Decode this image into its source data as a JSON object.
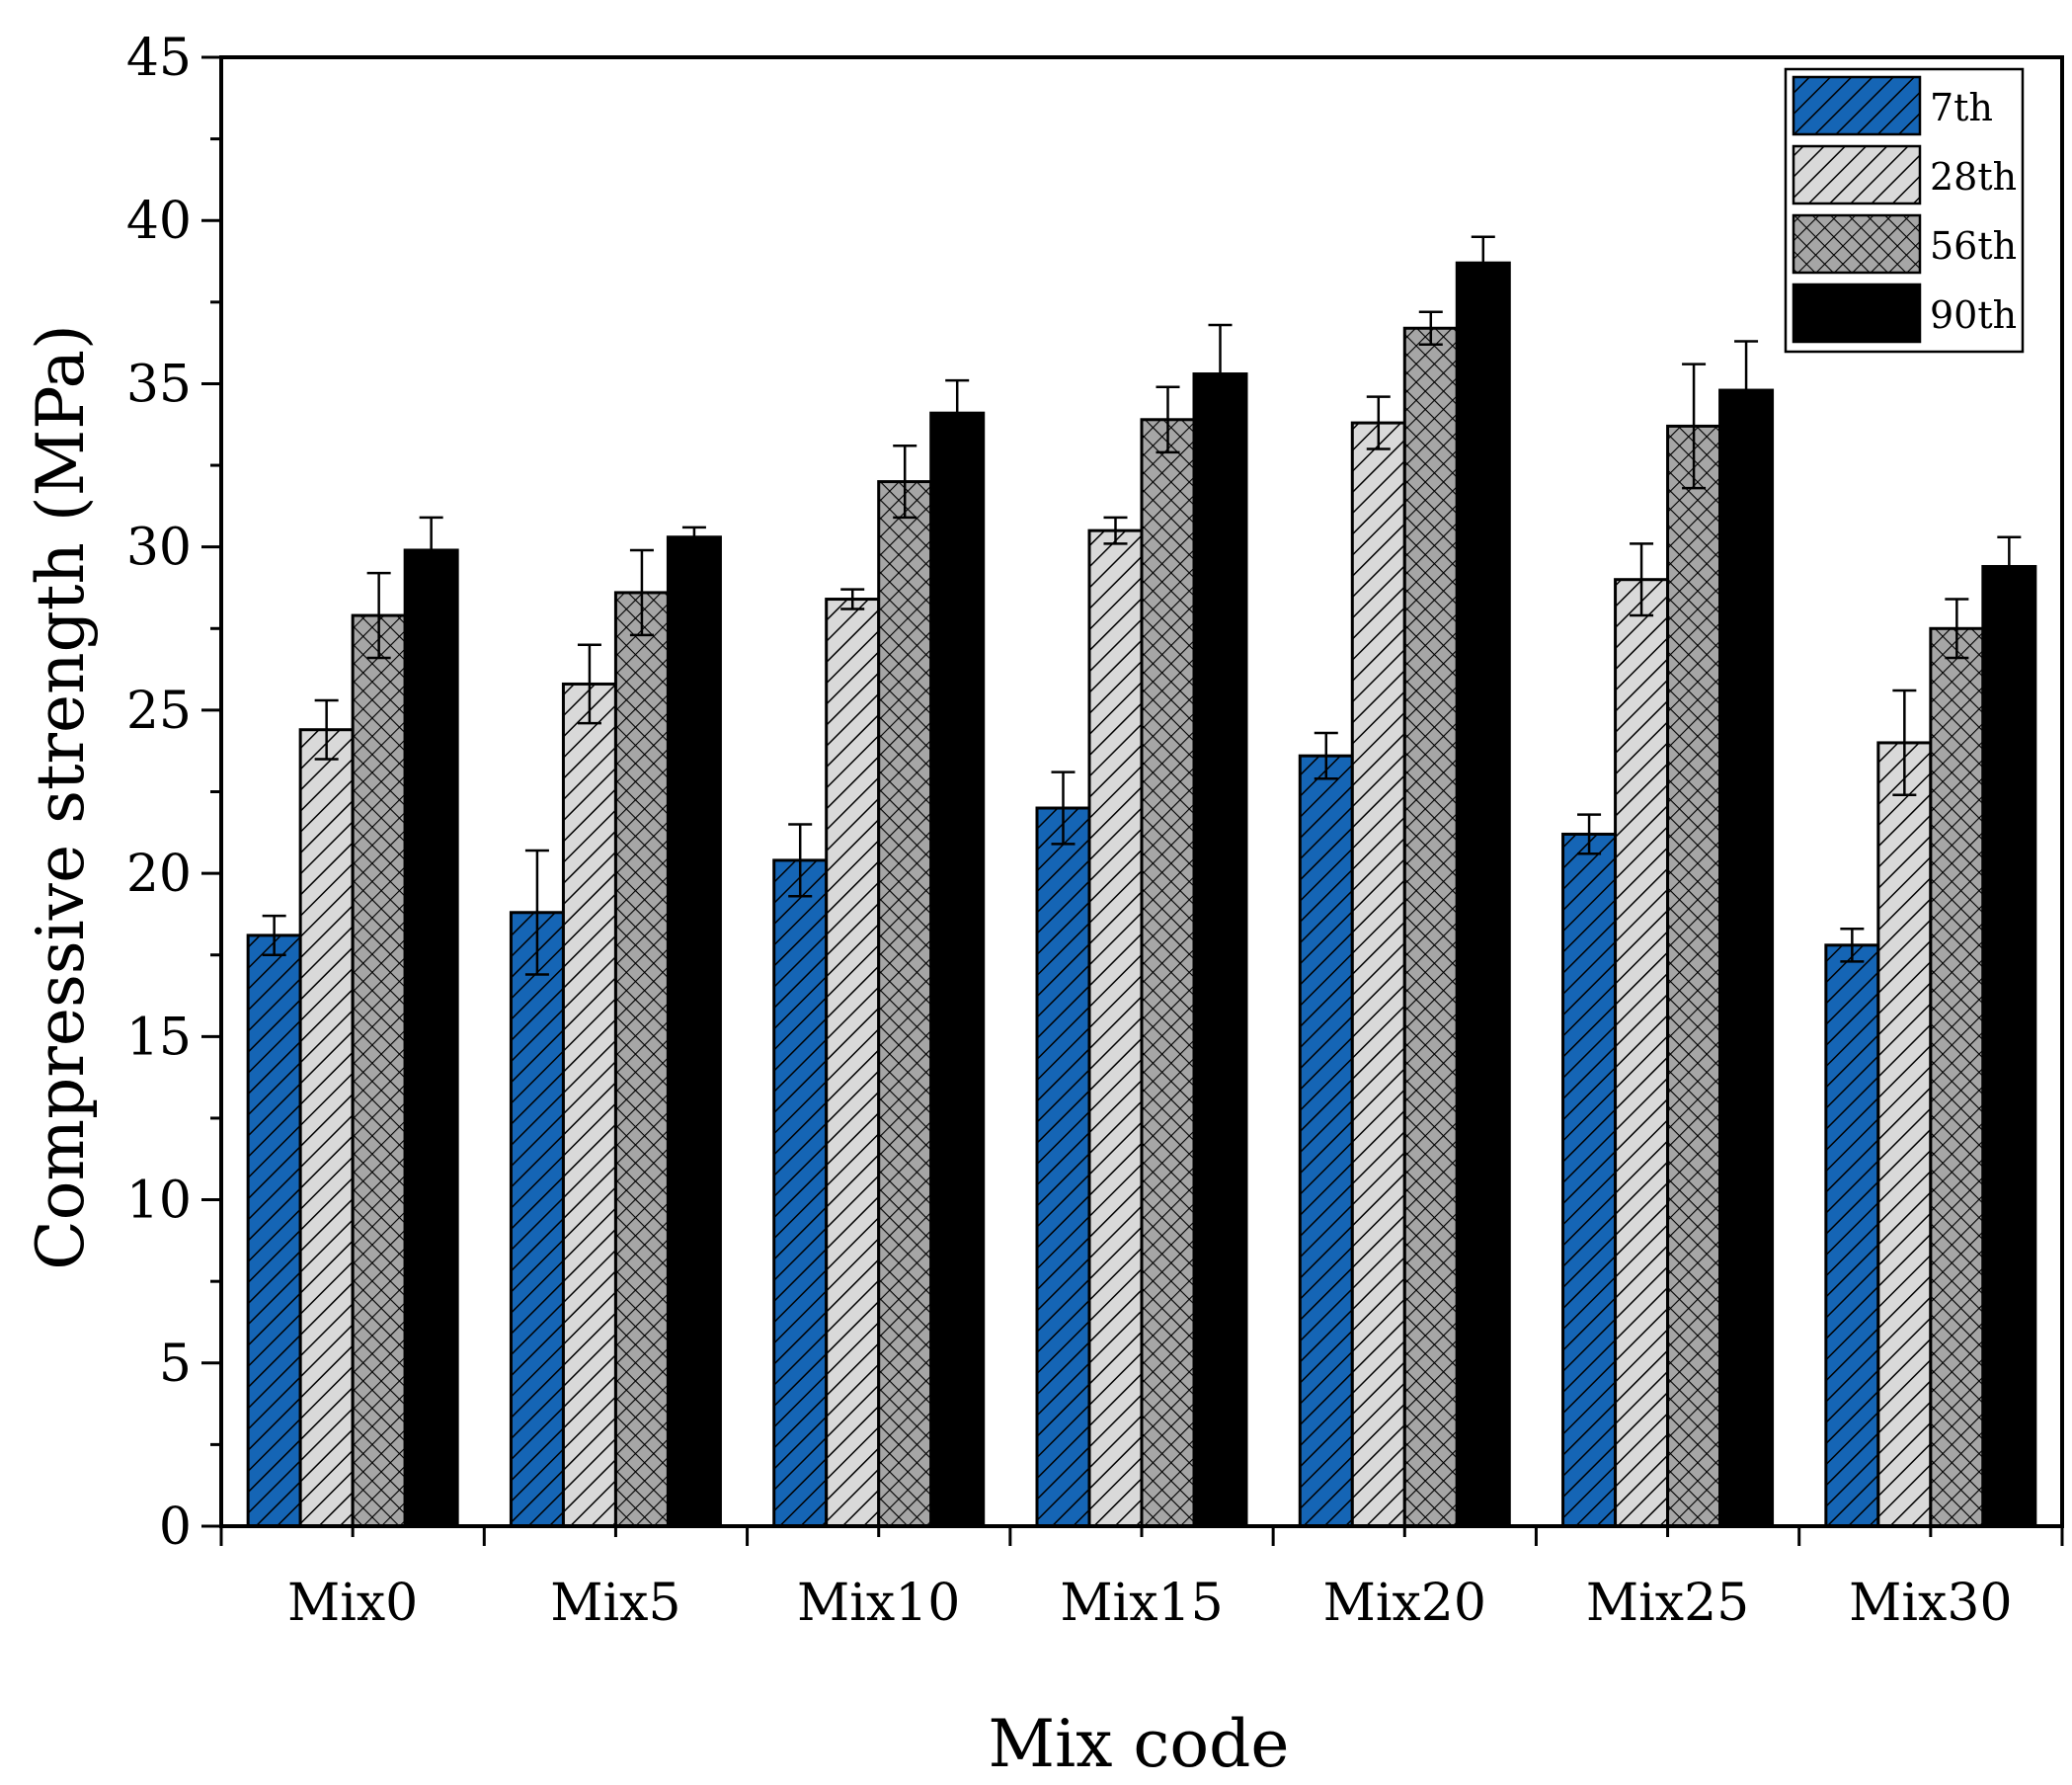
{
  "chart_data": {
    "type": "bar",
    "title": "",
    "xlabel": "Mix code",
    "ylabel": "Compressive strength (MPa)",
    "ylim": [
      0,
      45
    ],
    "yticks": [
      0,
      5,
      10,
      15,
      20,
      25,
      30,
      35,
      40,
      45
    ],
    "grid": false,
    "legend_position": "top-right",
    "categories": [
      "Mix0",
      "Mix5",
      "Mix10",
      "Mix15",
      "Mix20",
      "Mix25",
      "Mix30"
    ],
    "series": [
      {
        "name": "7th",
        "pattern": "diagonal-hatch",
        "color": "#1565b5",
        "values": [
          18.1,
          18.8,
          20.4,
          22.0,
          23.6,
          21.2,
          17.8
        ],
        "errors": [
          0.6,
          1.9,
          1.1,
          1.1,
          0.7,
          0.6,
          0.5
        ]
      },
      {
        "name": "28th",
        "pattern": "diagonal-hatch",
        "color": "#d9d9d9",
        "values": [
          24.4,
          25.8,
          28.4,
          30.5,
          33.8,
          29.0,
          24.0
        ],
        "errors": [
          0.9,
          1.2,
          0.3,
          0.4,
          0.8,
          1.1,
          1.6
        ]
      },
      {
        "name": "56th",
        "pattern": "cross-hatch",
        "color": "#a6a6a6",
        "values": [
          27.9,
          28.6,
          32.0,
          33.9,
          36.7,
          33.7,
          27.5
        ],
        "errors": [
          1.3,
          1.3,
          1.1,
          1.0,
          0.5,
          1.9,
          0.9
        ]
      },
      {
        "name": "90th",
        "pattern": "solid",
        "color": "#000000",
        "values": [
          29.9,
          30.3,
          34.1,
          35.3,
          38.7,
          34.8,
          29.4
        ],
        "errors": [
          1.0,
          0.3,
          1.0,
          1.5,
          0.8,
          1.5,
          0.9
        ]
      }
    ]
  }
}
